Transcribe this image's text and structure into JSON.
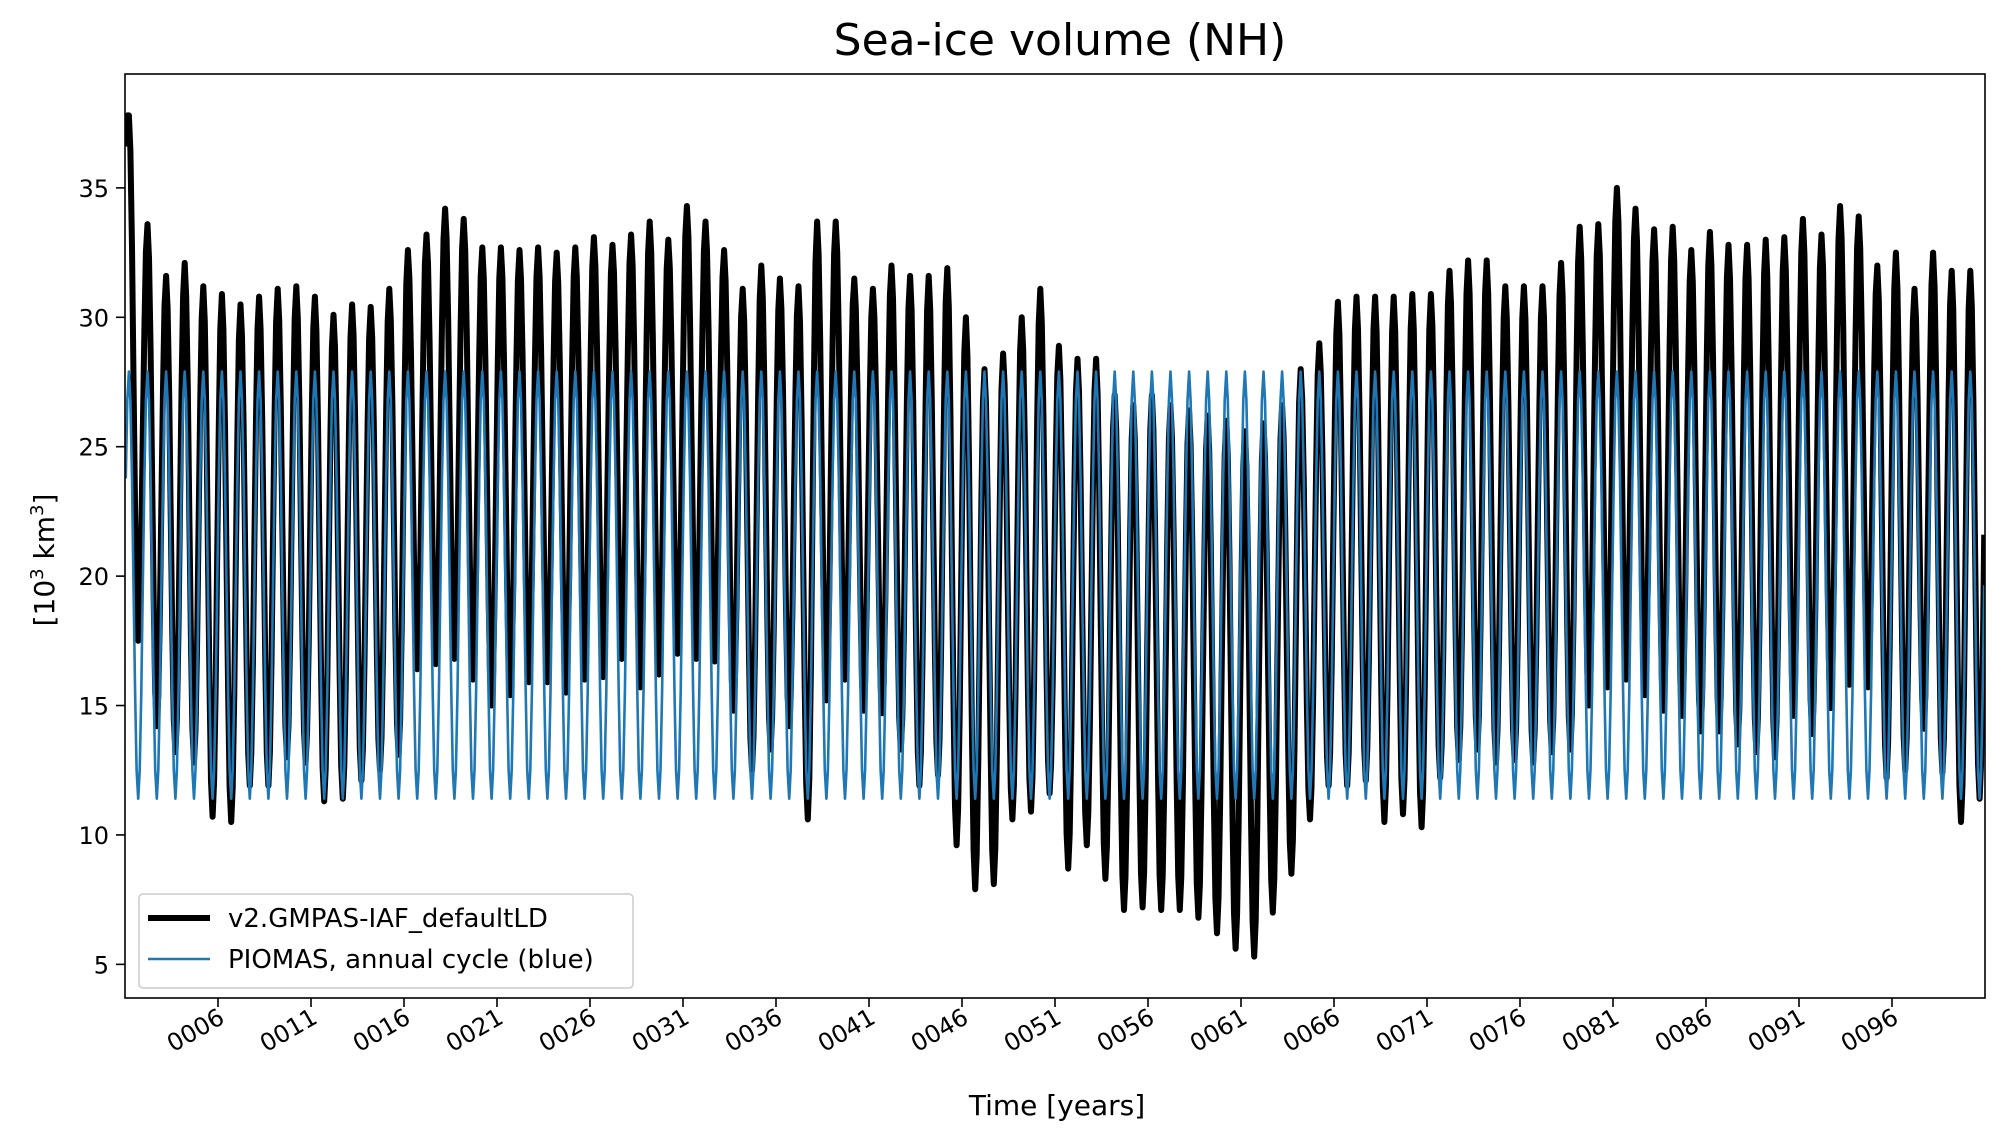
{
  "chart_data": {
    "type": "line",
    "title": "Sea-ice volume (NH)",
    "xlabel": "Time [years]",
    "ylabel_prefix": "[10",
    "ylabel_sup1": "3",
    "ylabel_mid": " km",
    "ylabel_sup2": "3",
    "ylabel_suffix": "]",
    "xlim": [
      1.0,
      101.0
    ],
    "ylim": [
      3.7,
      39.4
    ],
    "yticks": [
      5,
      10,
      15,
      20,
      25,
      30,
      35
    ],
    "ytick_labels": [
      "5",
      "10",
      "15",
      "20",
      "25",
      "30",
      "35"
    ],
    "xticks": [
      6,
      11,
      16,
      21,
      26,
      31,
      36,
      41,
      46,
      51,
      56,
      61,
      66,
      71,
      76,
      81,
      86,
      91,
      96
    ],
    "xtick_labels": [
      "0006",
      "0011",
      "0016",
      "0021",
      "0026",
      "0031",
      "0036",
      "0041",
      "0046",
      "0051",
      "0056",
      "0061",
      "0066",
      "0071",
      "0076",
      "0081",
      "0086",
      "0091",
      "0096"
    ],
    "legend_position": "lower-left",
    "grid": false,
    "series": [
      {
        "name": "v2.GMPAS-IAF_defaultLD",
        "color": "#000000",
        "sampling": "annual maximum (March) and annual minimum (September), years 0001-0100",
        "annual_max": [
          37.8,
          33.6,
          31.6,
          32.1,
          31.2,
          30.9,
          30.5,
          30.8,
          31.1,
          31.2,
          30.8,
          30.1,
          30.5,
          30.4,
          31.1,
          32.6,
          33.2,
          34.2,
          33.8,
          32.7,
          32.7,
          32.6,
          32.7,
          32.5,
          32.7,
          33.1,
          32.8,
          33.2,
          33.7,
          33.0,
          34.3,
          33.7,
          32.6,
          31.1,
          32.0,
          31.5,
          31.2,
          33.7,
          33.7,
          31.5,
          31.1,
          32.0,
          31.6,
          31.6,
          31.9,
          30.0,
          28.0,
          28.6,
          30.0,
          31.1,
          28.9,
          28.4,
          28.4,
          27.0,
          26.6,
          27.0,
          26.6,
          26.4,
          26.2,
          26.0,
          25.6,
          25.9,
          26.6,
          28.0,
          29.0,
          30.6,
          30.8,
          30.8,
          30.8,
          30.9,
          30.9,
          31.8,
          32.2,
          32.2,
          31.2,
          31.2,
          31.2,
          32.1,
          33.5,
          33.6,
          35.0,
          34.2,
          33.4,
          33.5,
          32.6,
          33.3,
          32.8,
          32.8,
          33.0,
          33.1,
          33.8,
          33.2,
          34.3,
          33.9,
          32.0,
          32.5,
          31.1,
          32.5,
          31.8,
          31.8
        ],
        "annual_min": [
          17.5,
          14.2,
          13.2,
          12.8,
          10.7,
          10.5,
          11.9,
          11.9,
          13.0,
          12.8,
          11.3,
          11.4,
          12.1,
          12.5,
          13.1,
          16.4,
          16.6,
          16.8,
          16.0,
          15.0,
          15.4,
          15.9,
          15.9,
          15.5,
          16.0,
          16.1,
          16.8,
          15.7,
          16.2,
          17.0,
          16.8,
          16.7,
          14.8,
          12.5,
          13.3,
          14.2,
          10.6,
          15.2,
          16.0,
          14.8,
          14.7,
          13.3,
          11.9,
          12.3,
          9.6,
          7.9,
          8.1,
          10.6,
          10.9,
          11.6,
          8.7,
          9.6,
          8.3,
          7.1,
          7.2,
          7.1,
          7.1,
          6.8,
          6.2,
          5.6,
          5.3,
          7.0,
          8.5,
          10.6,
          11.9,
          11.9,
          12.1,
          10.5,
          10.8,
          10.3,
          12.2,
          12.9,
          13.3,
          12.8,
          12.9,
          12.8,
          13.2,
          13.3,
          15.0,
          15.7,
          16.0,
          15.4,
          14.8,
          14.6,
          14.0,
          14.0,
          13.5,
          13.2,
          13.0,
          14.6,
          13.9,
          14.9,
          15.8,
          15.7,
          12.2,
          12.5,
          14.1,
          12.4,
          10.5,
          11.4
        ]
      },
      {
        "name": "PIOMAS, annual cycle (blue)",
        "color": "#1f77b4",
        "sampling": "repeating climatological annual cycle",
        "annual_max": 27.9,
        "annual_min": 11.4
      }
    ]
  }
}
